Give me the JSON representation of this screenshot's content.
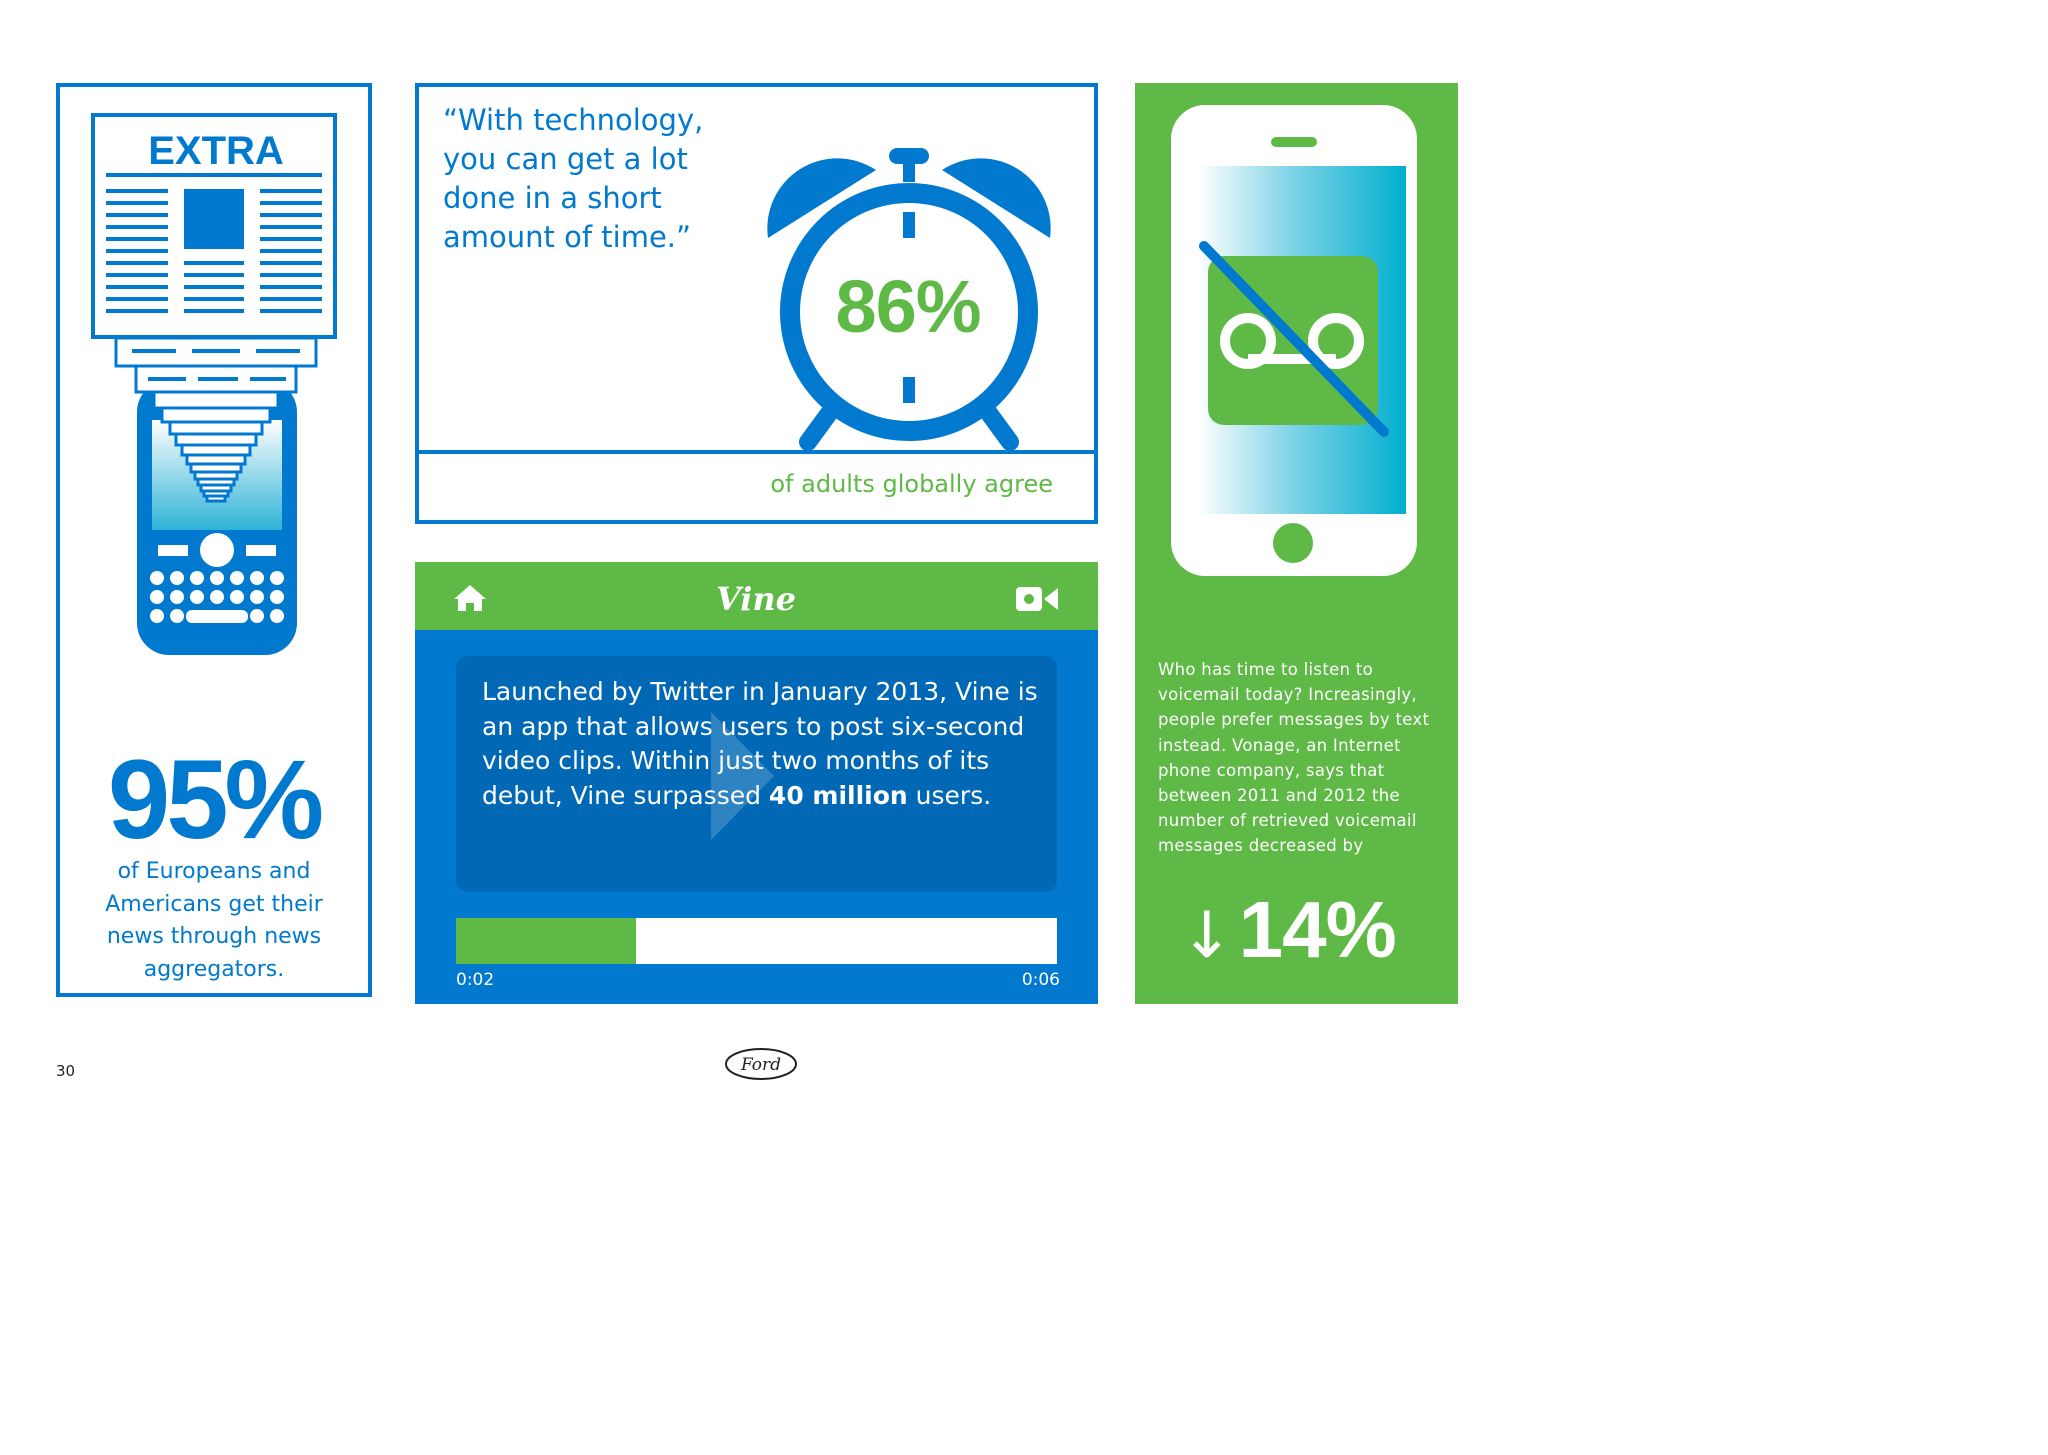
{
  "colors": {
    "blue": "#0079CF",
    "green": "#5FB946",
    "dark_blue": "#0068B5",
    "white": "#ffffff"
  },
  "news_panel": {
    "headline": "EXTRA",
    "stat": "95%",
    "caption": "of Europeans and Americans get their news through news aggregators.",
    "icons": [
      "newspaper-icon",
      "smartphone-icon"
    ]
  },
  "clock_panel": {
    "quote": "“With technology,\nyou can get a lot\ndone in a short\namount of time.”",
    "stat": "86%",
    "caption": "of adults globally agree",
    "icons": [
      "alarm-clock-icon"
    ]
  },
  "vine_panel": {
    "app_name": "Vine",
    "text_before": "Launched by Twitter in January 2013, Vine is an app that allows users to post six-second video clips. Within just two months of its debut, Vine surpassed ",
    "text_bold": "40 million",
    "text_after": " users.",
    "progress": {
      "current": "0:02",
      "total": "0:06",
      "fraction": 0.3
    },
    "icons": [
      "home-icon",
      "video-camera-icon",
      "play-icon"
    ]
  },
  "voicemail_panel": {
    "text": "Who has time to listen to voicemail today? Increasingly, people prefer messages by text instead. Vonage, an Internet phone company, says that between 2011 and 2012 the number of retrieved voicemail messages decreased by",
    "arrow": "↓",
    "stat": "14%",
    "icons": [
      "phone-icon",
      "voicemail-crossed-icon",
      "down-arrow-icon"
    ]
  },
  "footer": {
    "page_number": "30",
    "logo": "Ford"
  }
}
